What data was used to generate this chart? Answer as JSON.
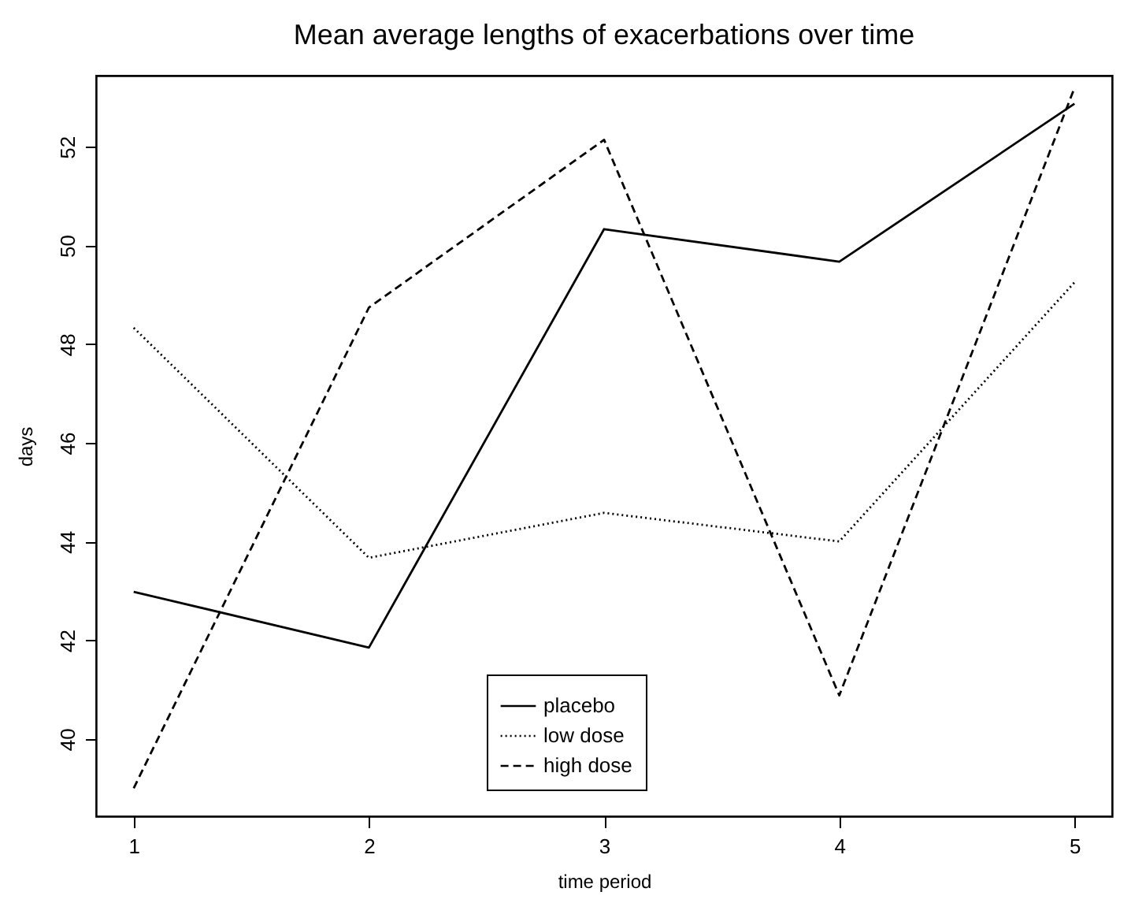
{
  "chart_data": {
    "type": "line",
    "title": "Mean average lengths of exacerbations over time",
    "xlabel": "time period",
    "ylabel": "days",
    "x": [
      1,
      2,
      3,
      4,
      5
    ],
    "series": [
      {
        "name": "placebo",
        "color": "#000000",
        "line_style": "solid",
        "values": [
          42.98,
          41.85,
          50.33,
          49.67,
          52.87
        ]
      },
      {
        "name": "low dose",
        "color": "#000000",
        "line_style": "dotted",
        "values": [
          48.33,
          43.67,
          44.58,
          44.0,
          49.25
        ]
      },
      {
        "name": "high dose",
        "color": "#000000",
        "line_style": "dashed",
        "values": [
          39.0,
          48.74,
          52.14,
          40.88,
          53.19
        ]
      }
    ],
    "xlim": [
      0.84,
      5.16
    ],
    "xticks": [
      1,
      2,
      3,
      4,
      5
    ],
    "ylim": [
      38.43,
      53.44
    ],
    "yticks": [
      40,
      42,
      44,
      46,
      48,
      50,
      52
    ],
    "grid": false,
    "legend": "bottom",
    "marker": "none"
  }
}
